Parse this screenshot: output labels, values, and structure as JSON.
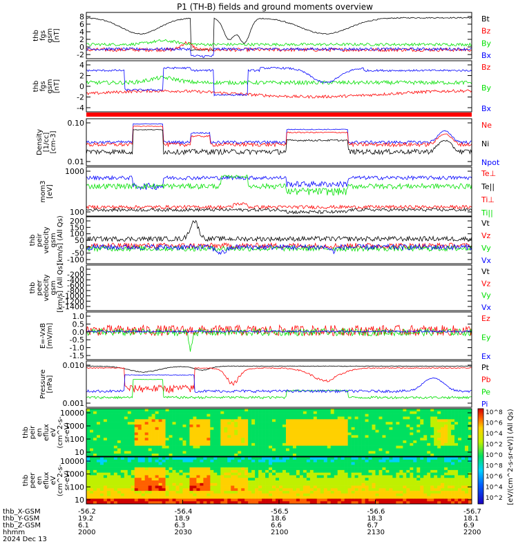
{
  "title": "P1 (TH-B) fields and ground moments overview",
  "colors": {
    "black": "#000000",
    "red": "#ff0000",
    "green": "#00e000",
    "blue": "#0000ff",
    "bg": "#ffffff"
  },
  "colorbar_ticks": [
    "10^8",
    "10^6",
    "10^4",
    "10^2",
    "10^0",
    "10^8",
    "10^6",
    "10^4",
    "10^2"
  ],
  "colorbar_label": "[eV/(cm^2-s-sr-eV)] (All Qs)",
  "panels": [
    {
      "id": "fgs",
      "ylabel": [
        "thb",
        "fgs",
        "gsm",
        "[nT]"
      ],
      "ticks": [
        "8",
        "6",
        "4",
        "2",
        "0",
        "-2"
      ],
      "ylim": [
        -3,
        10
      ],
      "legend": [
        {
          "text": "Bt",
          "color": "#000000"
        },
        {
          "text": "Bz",
          "color": "#ff0000"
        },
        {
          "text": "By",
          "color": "#00e000"
        },
        {
          "text": "Bx",
          "color": "#0000ff"
        }
      ]
    },
    {
      "id": "fgl",
      "ylabel": [
        "thb",
        "fgs",
        "gsm",
        "[nT]"
      ],
      "ticks": [
        "4",
        "2",
        "0",
        "-2",
        "-4"
      ],
      "ylim": [
        -5.5,
        5
      ],
      "legend": [
        {
          "text": "Bz",
          "color": "#ff0000"
        },
        {
          "text": "By",
          "color": "#00e000"
        },
        {
          "text": "Bx",
          "color": "#0000ff"
        }
      ]
    },
    {
      "id": "density",
      "ylabel": [
        "Density",
        "[1/cc]",
        "[cm-3]"
      ],
      "ticks": [
        "0.10",
        "0.01"
      ],
      "log": true,
      "ylim": [
        0.01,
        1
      ],
      "legend": [
        {
          "text": "Ne",
          "color": "#ff0000"
        },
        {
          "text": "Ni",
          "color": "#000000"
        },
        {
          "text": "Npot",
          "color": "#0000ff"
        }
      ]
    },
    {
      "id": "temp",
      "ylabel": [
        "mom3",
        "[eV]"
      ],
      "ticks": [
        "1000",
        "100"
      ],
      "log": true,
      "ylim": [
        50,
        1200
      ],
      "legend": [
        {
          "text": "Te⊥",
          "color": "#ff0000"
        },
        {
          "text": "Te||",
          "color": "#000000"
        },
        {
          "text": "Ti⊥",
          "color": "#ff0000"
        },
        {
          "text": "Ti||",
          "color": "#00e000"
        }
      ]
    },
    {
      "id": "peir_vel",
      "ylabel": [
        "thb",
        "peir",
        "velocity",
        "gsm",
        "[km/s] (All Qs)"
      ],
      "ticks": [
        "200",
        "150",
        "100",
        "50",
        "0",
        "-50",
        "-100"
      ],
      "ylim": [
        -120,
        220
      ],
      "legend": [
        {
          "text": "Vt",
          "color": "#000000"
        },
        {
          "text": "Vz",
          "color": "#ff0000"
        },
        {
          "text": "Vy",
          "color": "#00e000"
        },
        {
          "text": "Vx",
          "color": "#0000ff"
        }
      ]
    },
    {
      "id": "peer_vel",
      "ylabel": [
        "thb",
        "peer",
        "velocity",
        "gsm",
        "[km/s] (All Qs)"
      ],
      "ticks": [
        "0",
        "-200",
        "-400",
        "-600",
        "-800",
        "-1000",
        "-1200",
        "-1400"
      ],
      "ylim": [
        -1500,
        50
      ],
      "legend": [
        {
          "text": "Vt",
          "color": "#000000"
        },
        {
          "text": "Vz",
          "color": "#ff0000"
        },
        {
          "text": "Vy",
          "color": "#00e000"
        },
        {
          "text": "Vx",
          "color": "#0000ff"
        }
      ]
    },
    {
      "id": "efield",
      "ylabel": [
        "E=-VxB",
        "[mV/m]"
      ],
      "ticks": [
        "1.0",
        "0.5",
        "0.0",
        "-0.5",
        "-1.0",
        "-1.5"
      ],
      "ylim": [
        -1.6,
        1.1
      ],
      "legend": [
        {
          "text": "Ez",
          "color": "#ff0000"
        },
        {
          "text": "Ey",
          "color": "#00e000"
        },
        {
          "text": "Ex",
          "color": "#0000ff"
        }
      ]
    },
    {
      "id": "pressure",
      "ylabel": [
        "Pressure",
        "[nPa]"
      ],
      "ticks": [
        "0.010",
        "0.001"
      ],
      "log": true,
      "ylim": [
        0.0003,
        0.03
      ],
      "legend": [
        {
          "text": "Pt",
          "color": "#000000"
        },
        {
          "text": "Pb",
          "color": "#ff0000"
        },
        {
          "text": "Pe",
          "color": "#00e000"
        },
        {
          "text": "Pi",
          "color": "#0000ff"
        }
      ]
    },
    {
      "id": "peir_spec",
      "ylabel": [
        "thb",
        "peir",
        "en",
        "eflux",
        "eV",
        "(cm^2-s-",
        "sr-eV)"
      ],
      "ticks": [
        "10000",
        "1000",
        "100",
        "10"
      ],
      "spectrogram": true
    },
    {
      "id": "peer_spec",
      "ylabel": [
        "thb",
        "peer",
        "en",
        "eflux",
        "eV",
        "(cm^2-s-",
        "sr-eV)"
      ],
      "ticks": [
        "10000",
        "1000",
        "100",
        "10"
      ],
      "spectrogram": true
    }
  ],
  "xaxis": {
    "rows": [
      {
        "label": "thb_X-GSM",
        "values": [
          "-56.2",
          "-56.4",
          "-56.5",
          "-56.6",
          "-56.7"
        ]
      },
      {
        "label": "thb_Y-GSM",
        "values": [
          "19.2",
          "18.9",
          "18.6",
          "18.3",
          "18.1"
        ]
      },
      {
        "label": "thb_Z-GSM",
        "values": [
          "6.1",
          "6.3",
          "6.6",
          "6.7",
          "6.9"
        ]
      },
      {
        "label": "hhmm",
        "values": [
          "2000",
          "2030",
          "2100",
          "2130",
          "2200"
        ]
      }
    ],
    "date": "2024 Dec 13"
  }
}
